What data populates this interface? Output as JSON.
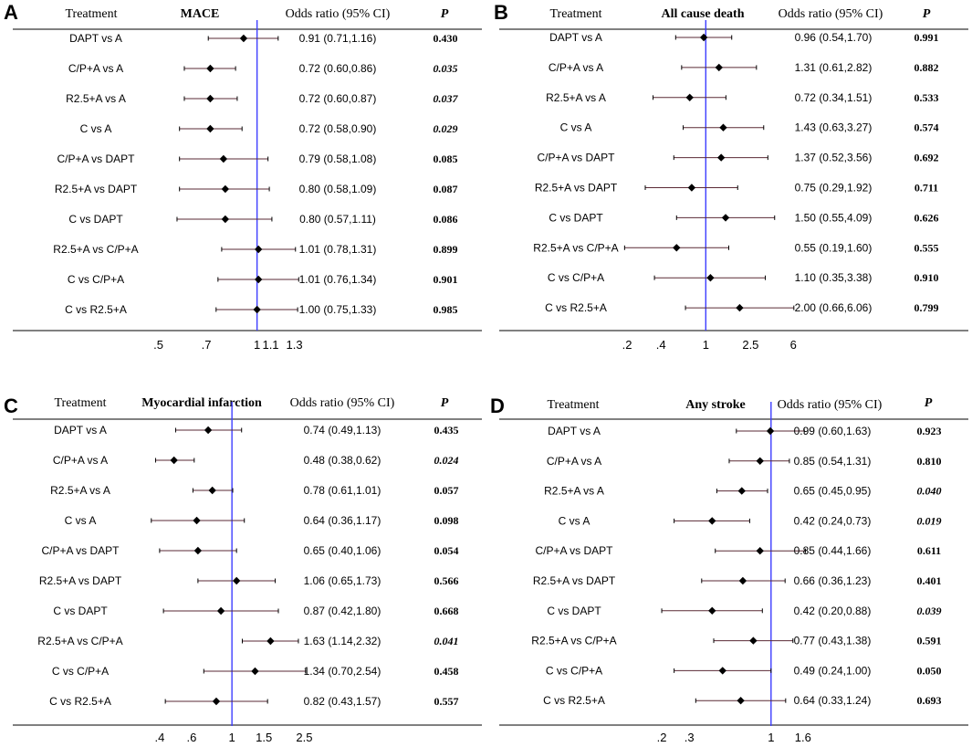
{
  "header": {
    "treatment": "Treatment",
    "odds_ratio": "Odds ratio (95% CI)",
    "p": "P"
  },
  "colors": {
    "reference_line": "#3d3dff",
    "ci_line": "#5a2a35",
    "marker": "#000000",
    "axis": "#000000"
  },
  "chart_data": [
    {
      "type": "forest",
      "panel": "A",
      "title": "MACE",
      "scale": "log",
      "xlim": [
        0.43,
        1.55
      ],
      "ticks": [
        0.5,
        0.7,
        1,
        1.1,
        1.3
      ],
      "tick_labels": [
        ".5",
        ".7",
        "1",
        "1.1",
        "1.3"
      ],
      "reference": 1,
      "rows": [
        {
          "comparison": "DAPT vs A",
          "or": 0.91,
          "lo": 0.71,
          "hi": 1.16,
          "ci_text": "0.91 (0.71,1.16)",
          "p": "0.430",
          "sig": false
        },
        {
          "comparison": "C/P+A vs A",
          "or": 0.72,
          "lo": 0.6,
          "hi": 0.86,
          "ci_text": "0.72 (0.60,0.86)",
          "p": "0.035",
          "sig": true
        },
        {
          "comparison": "R2.5+A vs A",
          "or": 0.72,
          "lo": 0.6,
          "hi": 0.87,
          "ci_text": "0.72 (0.60,0.87)",
          "p": "0.037",
          "sig": true
        },
        {
          "comparison": "C vs A",
          "or": 0.72,
          "lo": 0.58,
          "hi": 0.9,
          "ci_text": "0.72 (0.58,0.90)",
          "p": "0.029",
          "sig": true
        },
        {
          "comparison": "C/P+A vs DAPT",
          "or": 0.79,
          "lo": 0.58,
          "hi": 1.08,
          "ci_text": "0.79 (0.58,1.08)",
          "p": "0.085",
          "sig": false
        },
        {
          "comparison": "R2.5+A vs DAPT",
          "or": 0.8,
          "lo": 0.58,
          "hi": 1.09,
          "ci_text": "0.80 (0.58,1.09)",
          "p": "0.087",
          "sig": false
        },
        {
          "comparison": "C vs DAPT",
          "or": 0.8,
          "lo": 0.57,
          "hi": 1.11,
          "ci_text": "0.80 (0.57,1.11)",
          "p": "0.086",
          "sig": false
        },
        {
          "comparison": "R2.5+A vs C/P+A",
          "or": 1.01,
          "lo": 0.78,
          "hi": 1.31,
          "ci_text": "1.01 (0.78,1.31)",
          "p": "0.899",
          "sig": false
        },
        {
          "comparison": "C vs C/P+A",
          "or": 1.01,
          "lo": 0.76,
          "hi": 1.34,
          "ci_text": "1.01 (0.76,1.34)",
          "p": "0.901",
          "sig": false
        },
        {
          "comparison": "C vs R2.5+A",
          "or": 1.0,
          "lo": 0.75,
          "hi": 1.33,
          "ci_text": "1.00 (0.75,1.33)",
          "p": "0.985",
          "sig": false
        }
      ]
    },
    {
      "type": "forest",
      "panel": "B",
      "title": "All cause death",
      "scale": "log",
      "xlim": [
        0.14,
        9.0
      ],
      "ticks": [
        0.2,
        0.4,
        1,
        2.5,
        6
      ],
      "tick_labels": [
        ".2",
        ".4",
        "1",
        "2.5",
        "6"
      ],
      "reference": 1,
      "rows": [
        {
          "comparison": "DAPT vs A",
          "or": 0.96,
          "lo": 0.54,
          "hi": 1.7,
          "ci_text": "0.96 (0.54,1.70)",
          "p": "0.991",
          "sig": false
        },
        {
          "comparison": "C/P+A vs A",
          "or": 1.31,
          "lo": 0.61,
          "hi": 2.82,
          "ci_text": "1.31 (0.61,2.82)",
          "p": "0.882",
          "sig": false
        },
        {
          "comparison": "R2.5+A vs A",
          "or": 0.72,
          "lo": 0.34,
          "hi": 1.51,
          "ci_text": "0.72 (0.34,1.51)",
          "p": "0.533",
          "sig": false
        },
        {
          "comparison": "C vs A",
          "or": 1.43,
          "lo": 0.63,
          "hi": 3.27,
          "ci_text": "1.43 (0.63,3.27)",
          "p": "0.574",
          "sig": false
        },
        {
          "comparison": "C/P+A vs DAPT",
          "or": 1.37,
          "lo": 0.52,
          "hi": 3.56,
          "ci_text": "1.37 (0.52,3.56)",
          "p": "0.692",
          "sig": false
        },
        {
          "comparison": "R2.5+A vs DAPT",
          "or": 0.75,
          "lo": 0.29,
          "hi": 1.92,
          "ci_text": "0.75 (0.29,1.92)",
          "p": "0.711",
          "sig": false
        },
        {
          "comparison": "C vs DAPT",
          "or": 1.5,
          "lo": 0.55,
          "hi": 4.09,
          "ci_text": "1.50 (0.55,4.09)",
          "p": "0.626",
          "sig": false
        },
        {
          "comparison": "R2.5+A vs C/P+A",
          "or": 0.55,
          "lo": 0.19,
          "hi": 1.6,
          "ci_text": "0.55 (0.19,1.60)",
          "p": "0.555",
          "sig": false
        },
        {
          "comparison": "C vs C/P+A",
          "or": 1.1,
          "lo": 0.35,
          "hi": 3.38,
          "ci_text": "1.10 (0.35,3.38)",
          "p": "0.910",
          "sig": false
        },
        {
          "comparison": "C vs R2.5+A",
          "or": 2.0,
          "lo": 0.66,
          "hi": 6.06,
          "ci_text": "2.00 (0.66,6.06)",
          "p": "0.799",
          "sig": false
        }
      ]
    },
    {
      "type": "forest",
      "panel": "C",
      "title": "Myocardial infarction",
      "scale": "log",
      "xlim": [
        0.3,
        3.4
      ],
      "ticks": [
        0.4,
        0.6,
        1,
        1.5,
        2.5
      ],
      "tick_labels": [
        ".4",
        ".6",
        "1",
        "1.5",
        "2.5"
      ],
      "reference": 1,
      "rows": [
        {
          "comparison": "DAPT vs A",
          "or": 0.74,
          "lo": 0.49,
          "hi": 1.13,
          "ci_text": "0.74 (0.49,1.13)",
          "p": "0.435",
          "sig": false
        },
        {
          "comparison": "C/P+A vs A",
          "or": 0.48,
          "lo": 0.38,
          "hi": 0.62,
          "ci_text": "0.48 (0.38,0.62)",
          "p": "0.024",
          "sig": true
        },
        {
          "comparison": "R2.5+A vs A",
          "or": 0.78,
          "lo": 0.61,
          "hi": 1.01,
          "ci_text": "0.78 (0.61,1.01)",
          "p": "0.057",
          "sig": false
        },
        {
          "comparison": "C vs A",
          "or": 0.64,
          "lo": 0.36,
          "hi": 1.17,
          "ci_text": "0.64 (0.36,1.17)",
          "p": "0.098",
          "sig": false
        },
        {
          "comparison": "C/P+A vs DAPT",
          "or": 0.65,
          "lo": 0.4,
          "hi": 1.06,
          "ci_text": "0.65 (0.40,1.06)",
          "p": "0.054",
          "sig": false
        },
        {
          "comparison": "R2.5+A vs DAPT",
          "or": 1.06,
          "lo": 0.65,
          "hi": 1.73,
          "ci_text": "1.06 (0.65,1.73)",
          "p": "0.566",
          "sig": false
        },
        {
          "comparison": "C vs DAPT",
          "or": 0.87,
          "lo": 0.42,
          "hi": 1.8,
          "ci_text": "0.87 (0.42,1.80)",
          "p": "0.668",
          "sig": false
        },
        {
          "comparison": "R2.5+A vs C/P+A",
          "or": 1.63,
          "lo": 1.14,
          "hi": 2.32,
          "ci_text": "1.63 (1.14,2.32)",
          "p": "0.041",
          "sig": true
        },
        {
          "comparison": "C vs C/P+A",
          "or": 1.34,
          "lo": 0.7,
          "hi": 2.54,
          "ci_text": "1.34 (0.70,2.54)",
          "p": "0.458",
          "sig": false
        },
        {
          "comparison": "C vs R2.5+A",
          "or": 0.82,
          "lo": 0.43,
          "hi": 1.57,
          "ci_text": "0.82 (0.43,1.57)",
          "p": "0.557",
          "sig": false
        }
      ]
    },
    {
      "type": "forest",
      "panel": "D",
      "title": "Any stroke",
      "scale": "log",
      "xlim": [
        0.13,
        2.5
      ],
      "ticks": [
        0.2,
        0.3,
        1,
        1.6
      ],
      "tick_labels": [
        ".2",
        ".3",
        "1",
        "1.6"
      ],
      "reference": 1,
      "rows": [
        {
          "comparison": "DAPT vs A",
          "or": 0.99,
          "lo": 0.6,
          "hi": 1.63,
          "ci_text": "0.99 (0.60,1.63)",
          "p": "0.923",
          "sig": false
        },
        {
          "comparison": "C/P+A vs A",
          "or": 0.85,
          "lo": 0.54,
          "hi": 1.31,
          "ci_text": "0.85 (0.54,1.31)",
          "p": "0.810",
          "sig": false
        },
        {
          "comparison": "R2.5+A vs A",
          "or": 0.65,
          "lo": 0.45,
          "hi": 0.95,
          "ci_text": "0.65 (0.45,0.95)",
          "p": "0.040",
          "sig": true
        },
        {
          "comparison": "C vs A",
          "or": 0.42,
          "lo": 0.24,
          "hi": 0.73,
          "ci_text": "0.42 (0.24,0.73)",
          "p": "0.019",
          "sig": true
        },
        {
          "comparison": "C/P+A vs DAPT",
          "or": 0.85,
          "lo": 0.44,
          "hi": 1.66,
          "ci_text": "0.85 (0.44,1.66)",
          "p": "0.611",
          "sig": false
        },
        {
          "comparison": "R2.5+A vs DAPT",
          "or": 0.66,
          "lo": 0.36,
          "hi": 1.23,
          "ci_text": "0.66 (0.36,1.23)",
          "p": "0.401",
          "sig": false
        },
        {
          "comparison": "C vs DAPT",
          "or": 0.42,
          "lo": 0.2,
          "hi": 0.88,
          "ci_text": "0.42 (0.20,0.88)",
          "p": "0.039",
          "sig": true
        },
        {
          "comparison": "R2.5+A vs C/P+A",
          "or": 0.77,
          "lo": 0.43,
          "hi": 1.38,
          "ci_text": "0.77 (0.43,1.38)",
          "p": "0.591",
          "sig": false
        },
        {
          "comparison": "C vs C/P+A",
          "or": 0.49,
          "lo": 0.24,
          "hi": 1.0,
          "ci_text": "0.49 (0.24,1.00)",
          "p": "0.050",
          "sig": false
        },
        {
          "comparison": "C vs R2.5+A",
          "or": 0.64,
          "lo": 0.33,
          "hi": 1.24,
          "ci_text": "0.64 (0.33,1.24)",
          "p": "0.693",
          "sig": false
        }
      ]
    }
  ]
}
